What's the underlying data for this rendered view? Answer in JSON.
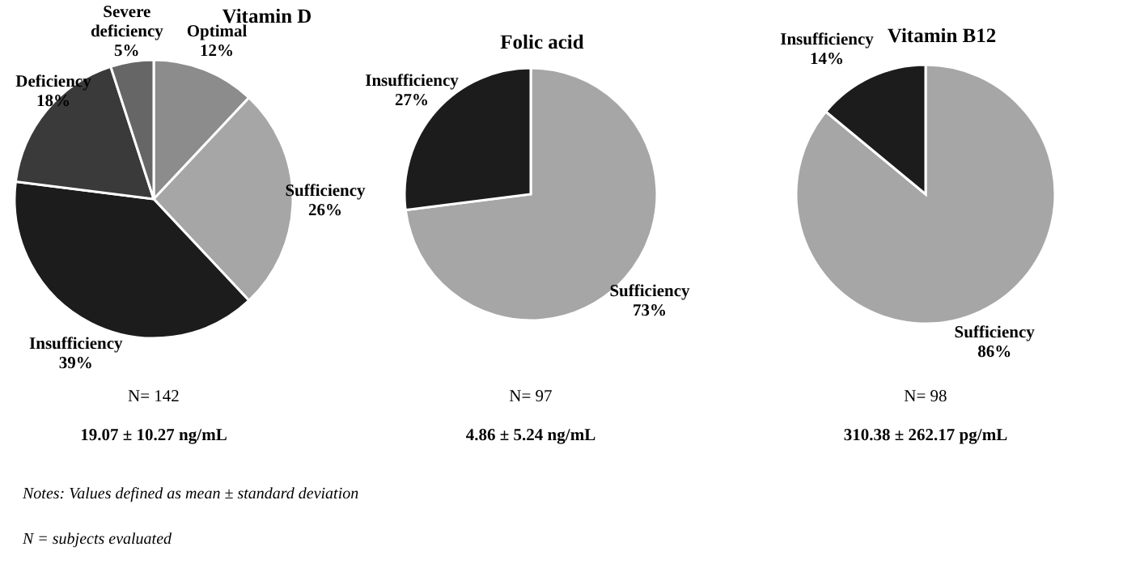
{
  "chart_data": [
    {
      "type": "pie",
      "title": "Vitamin D",
      "categories": [
        "Optimal",
        "Sufficiency",
        "Insufficiency",
        "Deficiency",
        "Severe deficiency"
      ],
      "values": [
        12,
        26,
        39,
        18,
        5
      ],
      "colors": [
        "#8c8c8c",
        "#a6a6a6",
        "#1c1c1c",
        "#3a3a3a",
        "#666666"
      ],
      "value_labels": [
        "12%",
        "26%",
        "39%",
        "18%",
        "5%"
      ],
      "annotations": [
        "N= 142",
        "19.07 ± 10.27 ng/mL",
        "Notes: Values defined as mean ± standard deviation",
        "N = subjects evaluated"
      ]
    },
    {
      "type": "pie",
      "title": "Folic acid",
      "categories": [
        "Sufficiency",
        "Insufficiency"
      ],
      "values": [
        73,
        27
      ],
      "colors": [
        "#a6a6a6",
        "#1c1c1c"
      ],
      "value_labels": [
        "73%",
        "27%"
      ],
      "annotations": [
        "N= 97",
        "4.86 ± 5.24 ng/mL"
      ]
    },
    {
      "type": "pie",
      "title": "Vitamin B12",
      "categories": [
        "Sufficiency",
        "Insufficiency"
      ],
      "values": [
        86,
        14
      ],
      "colors": [
        "#a6a6a6",
        "#1c1c1c"
      ],
      "value_labels": [
        "86%",
        "14%"
      ],
      "annotations": [
        "N= 98",
        "310.38 ± 262.17 pg/mL"
      ]
    }
  ]
}
